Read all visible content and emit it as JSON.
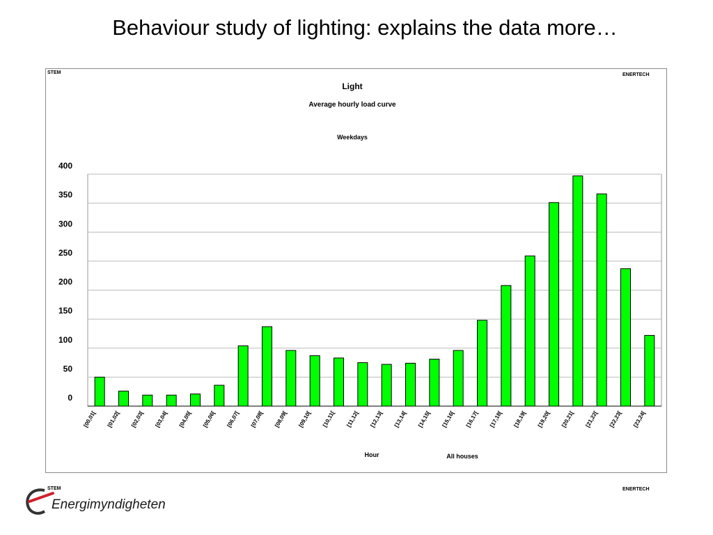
{
  "slide": {
    "title": "Behaviour study of lighting: explains the data more…"
  },
  "chart_frame": {
    "tag_left": "STEM",
    "tag_right": "ENERTECH"
  },
  "footer": {
    "tag_left": "STEM",
    "tag_right": "ENERTECH",
    "logo_text": "Energimyndigheten",
    "logo_icon": "energimyndigheten-swoosh-icon",
    "logo_colors": {
      "red": "#d0202e",
      "dark": "#333333"
    }
  },
  "chart_data": {
    "type": "bar",
    "title": "Light",
    "subtitle": "Average hourly load curve",
    "subtitle2": "Weekdays",
    "xlabel": "Hour",
    "annotation": "All houses",
    "ylabel": "",
    "ylim": [
      0,
      400
    ],
    "yticks": [
      0,
      50,
      100,
      150,
      200,
      250,
      300,
      350,
      400
    ],
    "grid": true,
    "bar_color": "#00ff00",
    "categories": [
      "[00,01[",
      "[01,02[",
      "[02,03[",
      "[03,04[",
      "[04,05[",
      "[05,06[",
      "[06,07[",
      "[07,08[",
      "[08,09[",
      "[09,10[",
      "[10,11[",
      "[11,12[",
      "[12,13[",
      "[13,14[",
      "[14,15[",
      "[15,16[",
      "[16,17[",
      "[17,18[",
      "[18,19[",
      "[19,20[",
      "[20,21[",
      "[21,22[",
      "[22,23[",
      "[23,24["
    ],
    "values": [
      50,
      26,
      19,
      19,
      21,
      36,
      104,
      137,
      96,
      87,
      83,
      75,
      72,
      74,
      81,
      96,
      148,
      208,
      259,
      351,
      397,
      366,
      237,
      122
    ]
  }
}
